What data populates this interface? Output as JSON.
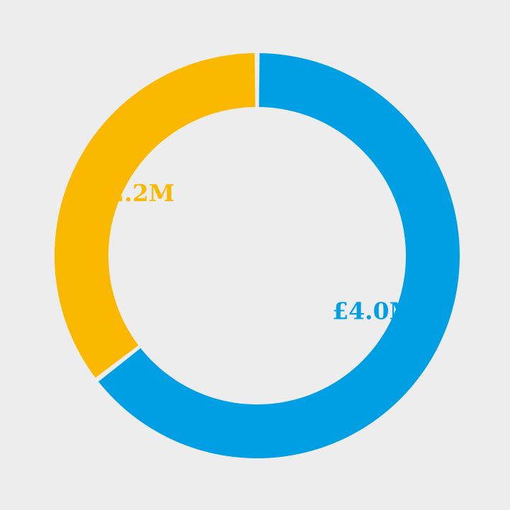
{
  "chart_data": {
    "type": "pie",
    "variant": "donut",
    "categories": [
      "",
      ""
    ],
    "values": [
      4.0,
      2.2
    ],
    "labels": [
      "£4.0M",
      "£2.2M"
    ],
    "colors": [
      "#009fe3",
      "#fbb800"
    ],
    "title": "",
    "legend": "none"
  },
  "background": "#ededed"
}
